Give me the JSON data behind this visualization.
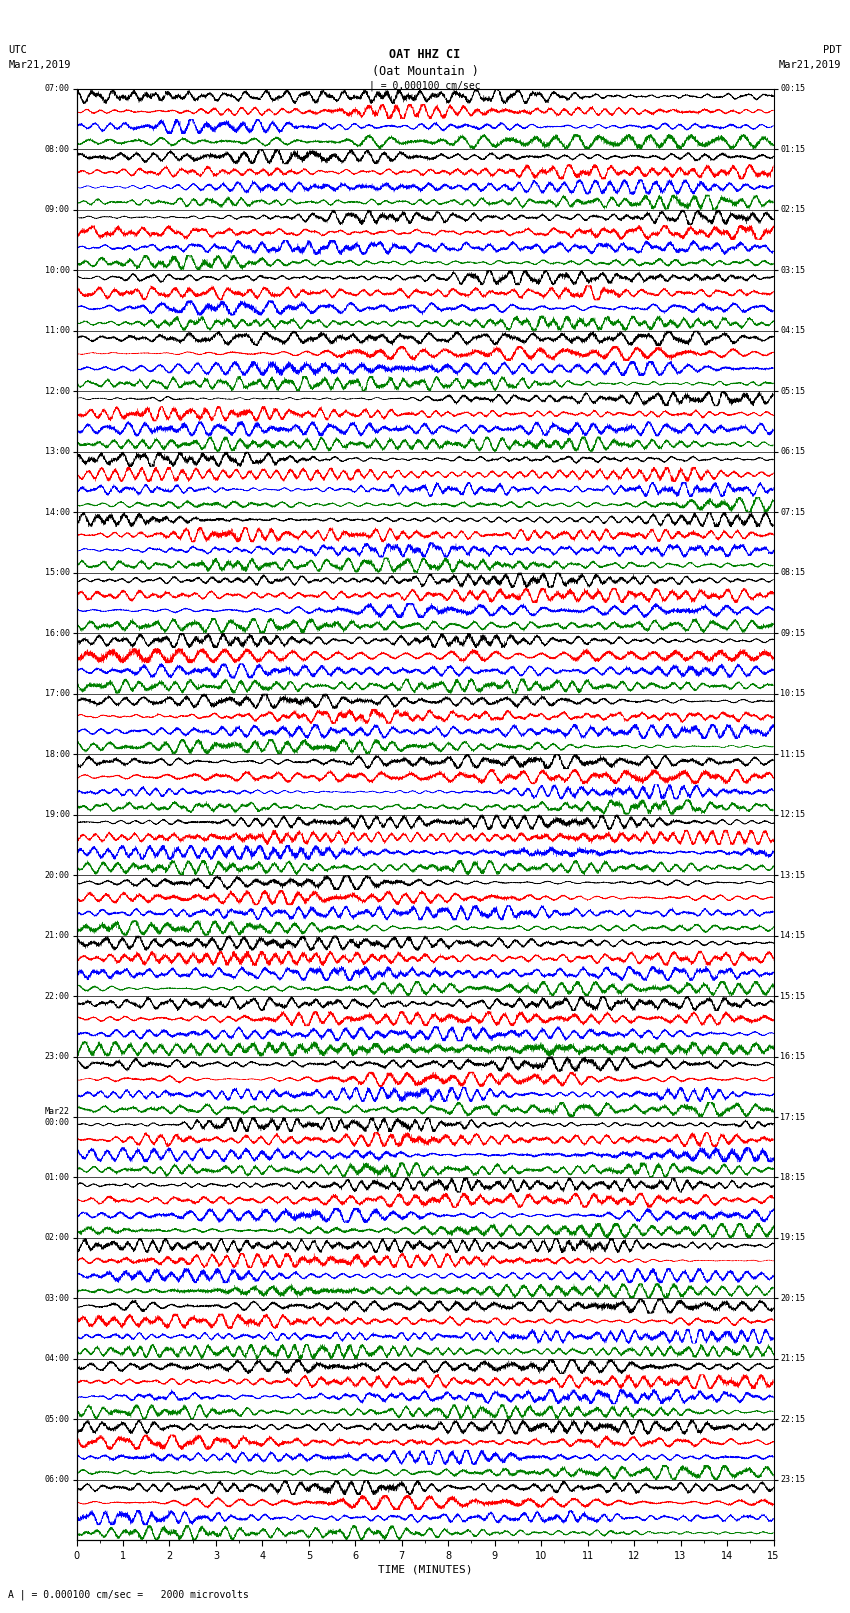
{
  "title_line1": "OAT HHZ CI",
  "title_line2": "(Oat Mountain )",
  "scale_label": "| = 0.000100 cm/sec",
  "left_header_line1": "UTC",
  "left_header_line2": "Mar21,2019",
  "right_header_line1": "PDT",
  "right_header_line2": "Mar21,2019",
  "bottom_label": "TIME (MINUTES)",
  "bottom_note": "A | = 0.000100 cm/sec =   2000 microvolts",
  "left_times": [
    "07:00",
    "08:00",
    "09:00",
    "10:00",
    "11:00",
    "12:00",
    "13:00",
    "14:00",
    "15:00",
    "16:00",
    "17:00",
    "18:00",
    "19:00",
    "20:00",
    "21:00",
    "22:00",
    "23:00",
    "Mar22\n00:00",
    "01:00",
    "02:00",
    "03:00",
    "04:00",
    "05:00",
    "06:00"
  ],
  "right_times": [
    "00:15",
    "01:15",
    "02:15",
    "03:15",
    "04:15",
    "05:15",
    "06:15",
    "07:15",
    "08:15",
    "09:15",
    "10:15",
    "11:15",
    "12:15",
    "13:15",
    "14:15",
    "15:15",
    "16:15",
    "17:15",
    "18:15",
    "19:15",
    "20:15",
    "21:15",
    "22:15",
    "23:15"
  ],
  "n_rows": 24,
  "n_traces_per_row": 4,
  "x_min": 0,
  "x_max": 15,
  "x_ticks": [
    0,
    1,
    2,
    3,
    4,
    5,
    6,
    7,
    8,
    9,
    10,
    11,
    12,
    13,
    14,
    15
  ],
  "colors": [
    "black",
    "red",
    "blue",
    "green"
  ],
  "bg_color": "white",
  "seed": 42
}
